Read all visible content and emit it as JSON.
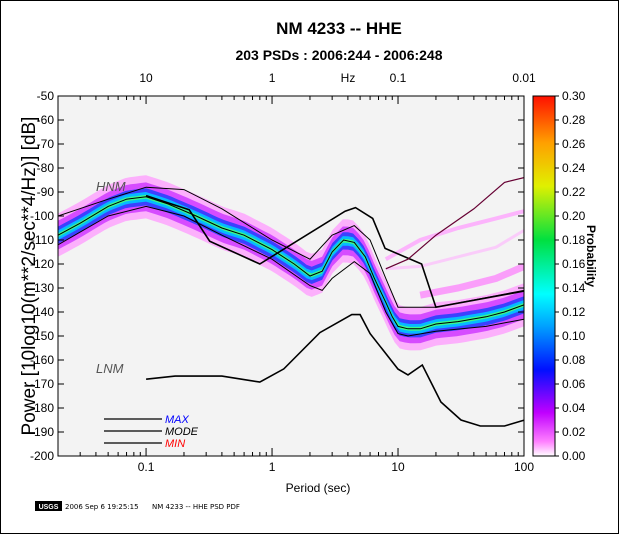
{
  "chart_data": {
    "type": "heatmap",
    "title": "NM 4233 -- HHE",
    "subtitle": "203 PSDs : 2006:244 - 2006:248",
    "xlabel": "Period (sec)",
    "top_axis_label": "Hz",
    "ylabel": "Power [10log10(m**2/sec**4/Hz)] [dB]",
    "colorbar_label": "Probability",
    "x_scale": "log",
    "xlim": [
      0.02,
      100
    ],
    "ylim": [
      -200,
      -50
    ],
    "x_ticks": [
      "0.1",
      "1",
      "10",
      "100"
    ],
    "top_ticks": [
      "10",
      "1",
      "0.1",
      "0.01"
    ],
    "y_ticks": [
      "-50",
      "-60",
      "-70",
      "-80",
      "-90",
      "-100",
      "-110",
      "-120",
      "-130",
      "-140",
      "-150",
      "-160",
      "-170",
      "-180",
      "-190",
      "-200"
    ],
    "colorbar_ticks": [
      "0.30",
      "0.28",
      "0.26",
      "0.24",
      "0.22",
      "0.20",
      "0.18",
      "0.16",
      "0.14",
      "0.12",
      "0.10",
      "0.08",
      "0.06",
      "0.04",
      "0.02",
      "0.00"
    ],
    "colorbar_range": [
      0,
      0.3
    ],
    "model_labels": {
      "high": "HNM",
      "low": "LNM"
    },
    "legend": {
      "position": "bottom-left",
      "entries": [
        {
          "name": "MAX",
          "color": "#0000ff"
        },
        {
          "name": "MODE",
          "color": "#000000"
        },
        {
          "name": "MIN",
          "color": "#ff0000"
        }
      ]
    },
    "hnm": {
      "x": [
        0.1,
        0.22,
        0.32,
        0.8,
        3.8,
        4.6,
        6.3,
        7.9,
        15.4,
        20,
        354.8
      ],
      "y": [
        -91.5,
        -97.4,
        -110.5,
        -120,
        -98,
        -96.5,
        -101,
        -113.5,
        -120,
        -138,
        -126
      ]
    },
    "lnm": {
      "x": [
        0.1,
        0.17,
        0.4,
        0.8,
        1.24,
        2.4,
        4.3,
        5,
        6,
        10,
        12,
        15.6,
        21.9,
        31.6,
        45,
        70,
        101
      ],
      "y": [
        -168,
        -166.7,
        -166.7,
        -169.2,
        -163.7,
        -148.6,
        -141.1,
        -141.1,
        -149,
        -163.8,
        -166.2,
        -162.1,
        -177.5,
        -185,
        -187.5,
        -187.5,
        -185
      ]
    },
    "mode": {
      "x": [
        0.02,
        0.03,
        0.05,
        0.07,
        0.1,
        0.15,
        0.25,
        0.4,
        0.6,
        1.0,
        1.5,
        2.0,
        2.5,
        3.0,
        3.7,
        4.5,
        5.5,
        6.5,
        8,
        9,
        10,
        12,
        15,
        20,
        30,
        50,
        70,
        100
      ],
      "y": [
        -108,
        -103,
        -96,
        -93,
        -92,
        -95,
        -100,
        -105,
        -108,
        -114,
        -120,
        -125,
        -123,
        -115,
        -110,
        -111,
        -117,
        -126,
        -136,
        -142,
        -146,
        -147,
        -147,
        -145,
        -144,
        -142,
        -140,
        -137
      ]
    },
    "max": {
      "x": [
        0.02,
        0.05,
        0.1,
        0.2,
        0.4,
        1.0,
        2.0,
        3.0,
        4.5,
        6,
        8,
        10,
        20,
        50,
        100
      ],
      "y": [
        -100,
        -93,
        -88,
        -89,
        -97,
        -110,
        -118,
        -108,
        -104,
        -110,
        -126,
        -138,
        -138,
        -134,
        -131
      ]
    },
    "min": {
      "x": [
        0.02,
        0.05,
        0.1,
        0.2,
        0.4,
        1.0,
        2.0,
        2.5,
        3.0,
        4.5,
        6,
        8,
        10,
        12,
        20,
        50,
        100
      ],
      "y": [
        -112,
        -100,
        -96,
        -100,
        -108,
        -118,
        -129,
        -131,
        -126,
        -119,
        -124,
        -140,
        -149,
        -150,
        -148,
        -146,
        -143
      ]
    }
  },
  "footer": {
    "logo": "USGS",
    "timestamp": "2006 Sep  6 19:25:15",
    "caption": "NM 4233 -- HHE PSD PDF"
  }
}
